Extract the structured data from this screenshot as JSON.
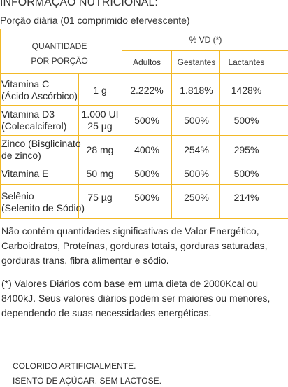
{
  "panel": {
    "title": "INFORMAÇÃO NUTRICIONAL:",
    "serving": "Porção diária (01 comprimido efervescente)"
  },
  "table": {
    "header": {
      "quantity_line1": "QUANTIDADE",
      "quantity_line2": "POR PORÇÃO",
      "vd_label": "% VD (*)",
      "groups": [
        "Adultos",
        "Gestantes",
        "Lactantes"
      ]
    },
    "rows": [
      {
        "nutrient_line1": "Vitamina C",
        "nutrient_line2": "(Ácido Ascórbico)",
        "amount_line1": "1 g",
        "amount_line2": "",
        "adultos": "2.222%",
        "gestantes": "1.818%",
        "lactantes": "1428%"
      },
      {
        "nutrient_line1": "Vitamina D3",
        "nutrient_line2": "(Colecalciferol)",
        "amount_line1": "1.000 UI",
        "amount_line2": "25 µg",
        "adultos": "500%",
        "gestantes": "500%",
        "lactantes": "500%"
      },
      {
        "nutrient_line1": "Zinco (Bisglicinato",
        "nutrient_line2": "de zinco)",
        "amount_line1": "28 mg",
        "amount_line2": "",
        "adultos": "400%",
        "gestantes": "254%",
        "lactantes": "295%"
      },
      {
        "nutrient_line1": "Vitamina E",
        "nutrient_line2": "",
        "amount_line1": "50 mg",
        "amount_line2": "",
        "adultos": "500%",
        "gestantes": "500%",
        "lactantes": "500%"
      },
      {
        "nutrient_line1": "Selênio",
        "nutrient_line2": "(Selenito de Sódio)",
        "amount_line1": "75 µg",
        "amount_line2": "",
        "adultos": "500%",
        "gestantes": "250%",
        "lactantes": "214%"
      }
    ]
  },
  "notes": {
    "not_significant": "Não contém quantidades significativas de Valor Energético, Carboidratos, Proteínas, gorduras totais, gorduras saturadas, gorduras trans, fibra alimentar e sódio.",
    "daily_values": "(*) Valores Diários com base em uma dieta de 2000Kcal ou 8400kJ. Seus valores diários podem ser maiores ou menores, dependendo de suas necessidades energéticas."
  },
  "footer": {
    "line1": "COLORIDO ARTIFICIALMENTE.",
    "line2": "ISENTO DE AÇÚCAR. SEM LACTOSE."
  },
  "colors": {
    "rule": "#f2b928",
    "text": "#2b2b2b"
  }
}
